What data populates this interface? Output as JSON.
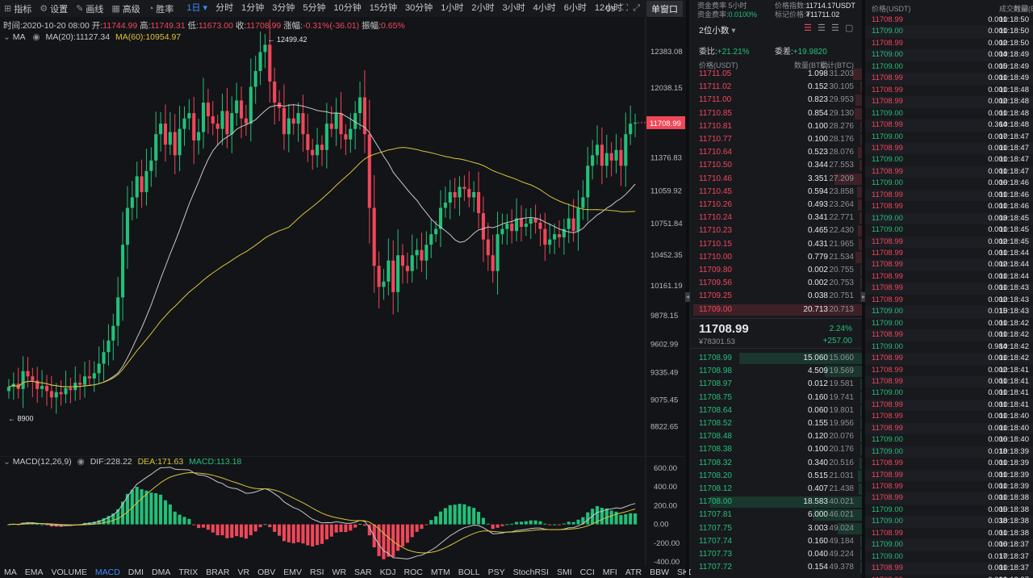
{
  "toolbar": {
    "indicators": "指标",
    "settings": "设置",
    "draw": "画线",
    "advanced": "高级",
    "depth": "胜率",
    "timeframes": [
      "1日",
      "分时",
      "1分钟",
      "3分钟",
      "5分钟",
      "10分钟",
      "15分钟",
      "30分钟",
      "1小时",
      "2小时",
      "3小时",
      "4小时",
      "6小时",
      "12小时"
    ],
    "active_timeframe": "1日",
    "countdown": "0s",
    "window_mode": "单窗口"
  },
  "info": {
    "time_label": "时间:",
    "time": "2020-10-20 08:00",
    "open_label": "开:",
    "open": "11744.99",
    "high_label": "高:",
    "high": "11749.31",
    "low_label": "低:",
    "low": "11673.00",
    "close_label": "收:",
    "close": "11708.99",
    "change_label": "涨幅:",
    "change": "-0.31%(-36.01)",
    "amplitude_label": "振幅:",
    "amplitude": "0.65%"
  },
  "ma": {
    "label": "MA",
    "ma20": "MA(20):11127.34",
    "ma60": "MA(60):10954.97"
  },
  "macd": {
    "label": "MACD(12,26,9)",
    "dif": "DIF:228.22",
    "dea": "DEA:171.63",
    "macd": "MACD:113.18"
  },
  "chart_data": {
    "type": "candlestick",
    "price_axis": [
      "12383.08",
      "12038.15",
      "11708.99",
      "11376.83",
      "11059.92",
      "10751.84",
      "10452.35",
      "10161.19",
      "9878.15",
      "9602.99",
      "9335.49",
      "9075.45",
      "8822.65"
    ],
    "high_marker": "12499.42",
    "low_marker": "8900",
    "last_price": "11708.99",
    "macd_axis": [
      "600.00",
      "400.00",
      "200.00",
      "0.00",
      "-200.00",
      "-400.00"
    ]
  },
  "indicators": [
    "MA",
    "EMA",
    "VOLUME",
    "MACD",
    "DMI",
    "DMA",
    "TRIX",
    "BRAR",
    "VR",
    "OBV",
    "EMV",
    "RSI",
    "WR",
    "SAR",
    "KDJ",
    "ROC",
    "MTM",
    "BOLL",
    "PSY",
    "StochRSI",
    "SMI",
    "CCI",
    "MFI",
    "ATR",
    "BBW",
    "SKDJ",
    "BIAS"
  ],
  "active_indicator": "MACD",
  "orderbook_header": {
    "funding_label": "资金费率 5小时",
    "funding_rate_label": "资金费率:",
    "funding_rate": "0.0100%",
    "index_label": "价格指数:",
    "index": "11714.17USDT",
    "mark_label": "标记价格:",
    "mark": "₮11711.02",
    "precision": "2位小数",
    "ratio_label": "委比:",
    "ratio": "+21.21%",
    "diff_label": "委差:",
    "diff": "+19.9820",
    "col_price": "价格(USDT)",
    "col_qty": "数量(BTC)",
    "col_total": "累计(BTC)"
  },
  "asks": [
    [
      "11711.05",
      "1.098",
      "31.203"
    ],
    [
      "11711.02",
      "0.152",
      "30.105"
    ],
    [
      "11711.00",
      "0.823",
      "29.953"
    ],
    [
      "11710.85",
      "0.854",
      "29.130"
    ],
    [
      "11710.81",
      "0.100",
      "28.276"
    ],
    [
      "11710.77",
      "0.100",
      "28.176"
    ],
    [
      "11710.64",
      "0.523",
      "28.076"
    ],
    [
      "11710.50",
      "0.344",
      "27.553"
    ],
    [
      "11710.46",
      "3.351",
      "27.209"
    ],
    [
      "11710.45",
      "0.594",
      "23.858"
    ],
    [
      "11710.26",
      "0.493",
      "23.264"
    ],
    [
      "11710.24",
      "0.341",
      "22.771"
    ],
    [
      "11710.23",
      "0.465",
      "22.430"
    ],
    [
      "11710.15",
      "0.431",
      "21.965"
    ],
    [
      "11710.00",
      "0.779",
      "21.534"
    ],
    [
      "11709.80",
      "0.002",
      "20.755"
    ],
    [
      "11709.56",
      "0.002",
      "20.753"
    ],
    [
      "11709.25",
      "0.038",
      "20.751"
    ],
    [
      "11709.00",
      "20.713",
      "20.713"
    ]
  ],
  "mid": {
    "price": "11708.99",
    "change_pct": "2.24%",
    "cny": "¥78301.53",
    "change": "+257.00"
  },
  "bids": [
    [
      "11708.99",
      "15.060",
      "15.060"
    ],
    [
      "11708.98",
      "4.509",
      "19.569"
    ],
    [
      "11708.97",
      "0.012",
      "19.581"
    ],
    [
      "11708.75",
      "0.160",
      "19.741"
    ],
    [
      "11708.64",
      "0.060",
      "19.801"
    ],
    [
      "11708.52",
      "0.155",
      "19.956"
    ],
    [
      "11708.48",
      "0.120",
      "20.076"
    ],
    [
      "11708.38",
      "0.100",
      "20.176"
    ],
    [
      "11708.32",
      "0.340",
      "20.516"
    ],
    [
      "11708.20",
      "0.515",
      "21.031"
    ],
    [
      "11708.12",
      "0.407",
      "21.438"
    ],
    [
      "11708.00",
      "18.583",
      "40.021"
    ],
    [
      "11707.81",
      "6.000",
      "46.021"
    ],
    [
      "11707.75",
      "3.003",
      "49.024"
    ],
    [
      "11707.74",
      "0.160",
      "49.184"
    ],
    [
      "11707.73",
      "0.040",
      "49.224"
    ],
    [
      "11707.72",
      "0.154",
      "49.378"
    ]
  ],
  "trades_header": {
    "col_price": "价格(USDT)",
    "col_qty": "数量(BTC)",
    "col_time": "成交时间"
  },
  "trades": [
    [
      "11708.99",
      "0.001",
      "10:18:50",
      "r"
    ],
    [
      "11709.00",
      "0.001",
      "10:18:50",
      "g"
    ],
    [
      "11708.99",
      "0.002",
      "10:18:50",
      "r"
    ],
    [
      "11709.00",
      "0.004",
      "10:18:49",
      "g"
    ],
    [
      "11709.00",
      "0.005",
      "10:18:49",
      "g"
    ],
    [
      "11708.99",
      "0.001",
      "10:18:49",
      "r"
    ],
    [
      "11708.99",
      "0.001",
      "10:18:48",
      "r"
    ],
    [
      "11708.99",
      "0.002",
      "10:18:48",
      "r"
    ],
    [
      "11709.00",
      "0.001",
      "10:18:48",
      "g"
    ],
    [
      "11708.99",
      "0.364",
      "10:18:48",
      "r"
    ],
    [
      "11709.00",
      "0.007",
      "10:18:47",
      "g"
    ],
    [
      "11708.99",
      "0.001",
      "10:18:47",
      "r"
    ],
    [
      "11709.00",
      "0.001",
      "10:18:47",
      "g"
    ],
    [
      "11708.99",
      "0.001",
      "10:18:47",
      "r"
    ],
    [
      "11709.00",
      "0.006",
      "10:18:46",
      "g"
    ],
    [
      "11708.99",
      "0.001",
      "10:18:46",
      "r"
    ],
    [
      "11708.99",
      "0.001",
      "10:18:46",
      "r"
    ],
    [
      "11709.00",
      "0.003",
      "10:18:45",
      "g"
    ],
    [
      "11709.00",
      "0.001",
      "10:18:45",
      "g"
    ],
    [
      "11708.99",
      "0.002",
      "10:18:45",
      "r"
    ],
    [
      "11708.99",
      "0.001",
      "10:18:44",
      "r"
    ],
    [
      "11708.99",
      "0.002",
      "10:18:44",
      "r"
    ],
    [
      "11708.99",
      "0.001",
      "10:18:44",
      "r"
    ],
    [
      "11708.99",
      "0.001",
      "10:18:43",
      "r"
    ],
    [
      "11708.99",
      "0.002",
      "10:18:43",
      "r"
    ],
    [
      "11709.00",
      "0.015",
      "10:18:43",
      "g"
    ],
    [
      "11709.00",
      "0.001",
      "10:18:42",
      "g"
    ],
    [
      "11708.99",
      "0.001",
      "10:18:42",
      "r"
    ],
    [
      "11709.00",
      "0.984",
      "10:18:42",
      "g"
    ],
    [
      "11708.99",
      "0.001",
      "10:18:42",
      "r"
    ],
    [
      "11708.99",
      "0.002",
      "10:18:41",
      "r"
    ],
    [
      "11708.99",
      "0.001",
      "10:18:41",
      "r"
    ],
    [
      "11709.00",
      "0.001",
      "10:18:41",
      "g"
    ],
    [
      "11708.99",
      "0.001",
      "10:18:41",
      "r"
    ],
    [
      "11708.99",
      "0.001",
      "10:18:40",
      "r"
    ],
    [
      "11708.99",
      "0.001",
      "10:18:40",
      "r"
    ],
    [
      "11709.00",
      "0.006",
      "10:18:40",
      "g"
    ],
    [
      "11709.00",
      "0.018",
      "10:18:39",
      "g"
    ],
    [
      "11708.99",
      "0.001",
      "10:18:39",
      "r"
    ],
    [
      "11708.99",
      "0.001",
      "10:18:39",
      "r"
    ],
    [
      "11708.99",
      "0.001",
      "10:18:39",
      "r"
    ],
    [
      "11708.99",
      "0.001",
      "10:18:38",
      "r"
    ],
    [
      "11709.00",
      "0.005",
      "10:18:38",
      "g"
    ],
    [
      "11709.00",
      "0.038",
      "10:18:38",
      "g"
    ],
    [
      "11708.99",
      "0.001",
      "10:18:38",
      "r"
    ],
    [
      "11709.00",
      "0.006",
      "10:18:37",
      "g"
    ],
    [
      "11709.00",
      "0.017",
      "10:18:37",
      "g"
    ],
    [
      "11708.99",
      "0.001",
      "10:18:37",
      "r"
    ],
    [
      "11708.99",
      "0.001",
      "10:18:37",
      "r"
    ]
  ],
  "colors": {
    "up": "#22c07a",
    "down": "#f0475a",
    "ma20": "#c8c8c8",
    "ma60": "#d8c33a",
    "accent": "#3b8cff"
  }
}
